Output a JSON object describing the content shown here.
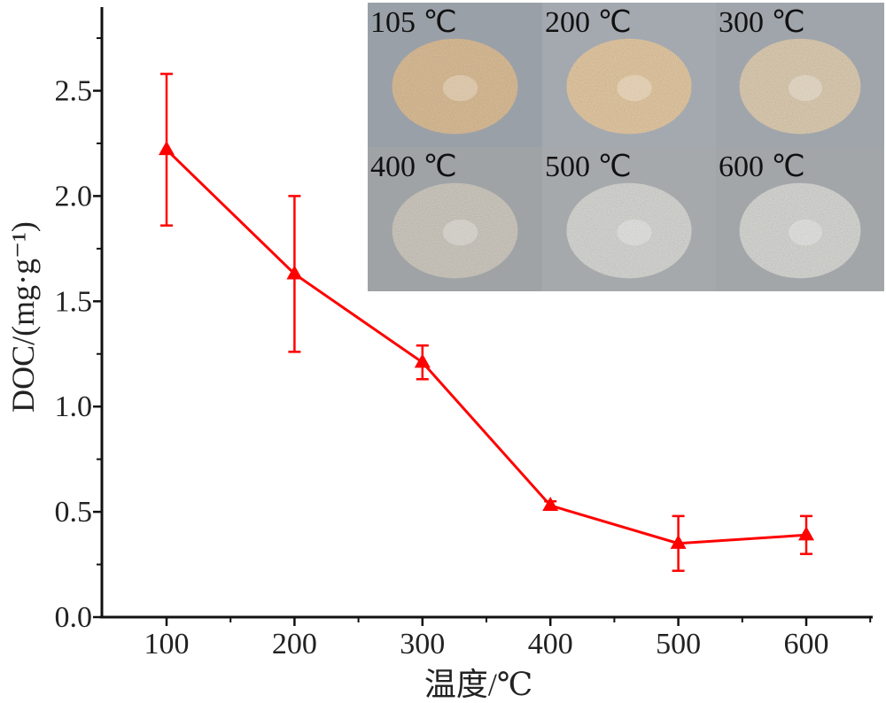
{
  "chart_data": {
    "type": "line",
    "xlabel": "温度/℃",
    "ylabel": "DOC/(mg·g⁻¹)",
    "xlim": [
      0,
      650
    ],
    "ylim": [
      0,
      2.9
    ],
    "x_ticks": [
      "100",
      "200",
      "300",
      "400",
      "500",
      "600"
    ],
    "y_ticks": [
      "0.0",
      "0.5",
      "1.0",
      "1.5",
      "2.0",
      "2.5"
    ],
    "series": [
      {
        "x": [
          100,
          200,
          300,
          400,
          500,
          600
        ],
        "y": [
          2.22,
          1.63,
          1.21,
          0.53,
          0.35,
          0.39
        ],
        "error": [
          0.36,
          0.37,
          0.08,
          0.02,
          0.13,
          0.09
        ],
        "color": "#ff0000",
        "marker": "triangle"
      }
    ]
  },
  "inset": {
    "panels": [
      {
        "label": "105 ℃",
        "color": "#e2c49c"
      },
      {
        "label": "200 ℃",
        "color": "#ebcfa8"
      },
      {
        "label": "300 ℃",
        "color": "#e4d3b8"
      },
      {
        "label": "400 ℃",
        "color": "#d5d0c6"
      },
      {
        "label": "500 ℃",
        "color": "#dededb"
      },
      {
        "label": "600 ℃",
        "color": "#dedfdb"
      }
    ]
  }
}
